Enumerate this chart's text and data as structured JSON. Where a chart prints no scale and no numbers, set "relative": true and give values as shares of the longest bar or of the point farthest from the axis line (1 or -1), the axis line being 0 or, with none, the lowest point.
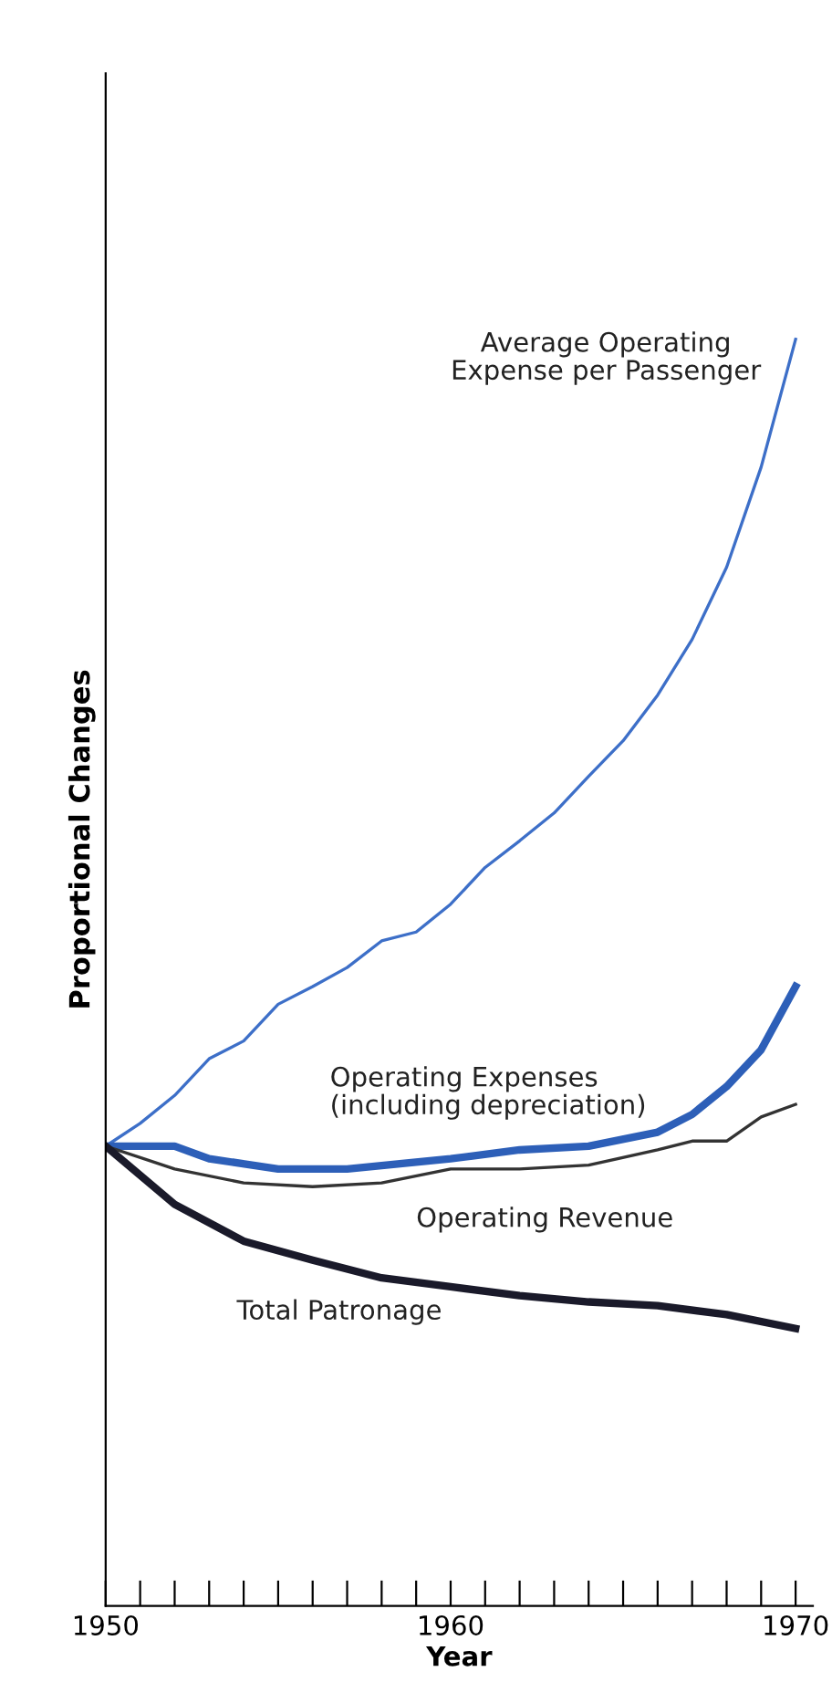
{
  "chart_data": {
    "type": "line",
    "relative": true,
    "xlabel": "Year",
    "ylabel": "Proportional Changes",
    "xlim": [
      1950,
      1970.5
    ],
    "xticks": [
      1950,
      {
        "value": 1951,
        "label": null
      },
      {
        "value": 1952,
        "label": null
      },
      {
        "value": 1953,
        "label": null
      },
      {
        "value": 1954,
        "label": null
      },
      {
        "value": 1955,
        "label": null
      },
      {
        "value": 1956,
        "label": null
      },
      {
        "value": 1957,
        "label": null
      },
      {
        "value": 1958,
        "label": null
      },
      {
        "value": 1959,
        "label": null
      },
      1960,
      {
        "value": 1961,
        "label": null
      },
      {
        "value": 1962,
        "label": null
      },
      {
        "value": 1963,
        "label": null
      },
      {
        "value": 1964,
        "label": null
      },
      {
        "value": 1965,
        "label": null
      },
      {
        "value": 1966,
        "label": null
      },
      {
        "value": 1967,
        "label": null
      },
      {
        "value": 1968,
        "label": null
      },
      {
        "value": 1969,
        "label": null
      },
      1970
    ],
    "tick_labels": "x",
    "grid": false,
    "marker": "none",
    "line_style": "solid",
    "series": [
      {
        "name": "Average Operating\nExpense per Passenger",
        "color": "#3d6fc8",
        "x": [
          1950,
          1951,
          1952,
          1953,
          1954,
          1955,
          1956,
          1957,
          1958,
          1959,
          1960,
          1961,
          1962,
          1963,
          1964,
          1965,
          1966,
          1967,
          1968,
          1969,
          1970
        ],
        "values": [
          0.363,
          0.381,
          0.403,
          0.432,
          0.446,
          0.475,
          0.489,
          0.504,
          0.525,
          0.532,
          0.554,
          0.583,
          0.604,
          0.626,
          0.655,
          0.683,
          0.719,
          0.763,
          0.82,
          0.899,
          1
        ]
      },
      {
        "name": "Operating Expenses\n(including depreciation)",
        "color": "#2d5fb8",
        "x": [
          1950,
          1952,
          1953,
          1955,
          1957,
          1960,
          1962,
          1964,
          1966,
          1967,
          1968,
          1969,
          1970
        ],
        "values": [
          0.363,
          0.363,
          0.353,
          0.345,
          0.345,
          0.353,
          0.36,
          0.363,
          0.374,
          0.388,
          0.41,
          0.439,
          0.489
        ]
      },
      {
        "name": "Operating Revenue",
        "color": "#333333",
        "x": [
          1950,
          1952,
          1954,
          1956,
          1958,
          1960,
          1962,
          1964,
          1966,
          1967,
          1968,
          1969,
          1970
        ],
        "values": [
          0.363,
          0.345,
          0.334,
          0.331,
          0.334,
          0.345,
          0.345,
          0.348,
          0.36,
          0.367,
          0.367,
          0.386,
          0.396
        ]
      },
      {
        "name": "Total Patronage",
        "color": "#1a1a2a",
        "x": [
          1950,
          1952,
          1954,
          1956,
          1958,
          1960,
          1962,
          1964,
          1966,
          1968,
          1970
        ],
        "values": [
          0.363,
          0.317,
          0.288,
          0.273,
          0.259,
          0.252,
          0.245,
          0.24,
          0.237,
          0.23,
          0.219
        ]
      }
    ]
  }
}
